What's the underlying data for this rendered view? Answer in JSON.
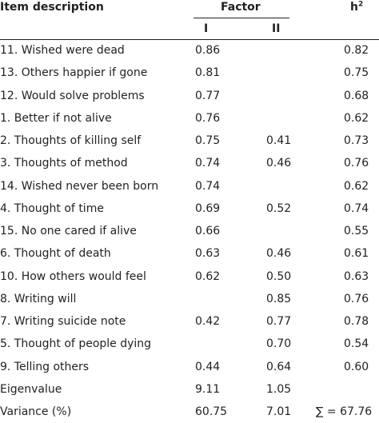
{
  "header": {
    "item_description": "Item description",
    "factor": "Factor",
    "h2_base": "h",
    "h2_sup": "2",
    "col_I": "I",
    "col_II": "II"
  },
  "rows": [
    {
      "desc": "11. Wished were dead",
      "f1": "0.86",
      "f2": "",
      "h2": "0.82"
    },
    {
      "desc": "13. Others happier if gone",
      "f1": "0.81",
      "f2": "",
      "h2": "0.75"
    },
    {
      "desc": "12. Would solve problems",
      "f1": "0.77",
      "f2": "",
      "h2": "0.68"
    },
    {
      "desc": "1. Better if not alive",
      "f1": "0.76",
      "f2": "",
      "h2": "0.62"
    },
    {
      "desc": "2. Thoughts of killing self",
      "f1": "0.75",
      "f2": "0.41",
      "h2": "0.73"
    },
    {
      "desc": "3. Thoughts of method",
      "f1": "0.74",
      "f2": "0.46",
      "h2": "0.76"
    },
    {
      "desc": "14. Wished never been born",
      "f1": "0.74",
      "f2": "",
      "h2": "0.62"
    },
    {
      "desc": "4. Thought of time",
      "f1": "0.69",
      "f2": "0.52",
      "h2": "0.74"
    },
    {
      "desc": "15. No one cared if alive",
      "f1": "0.66",
      "f2": "",
      "h2": "0.55"
    },
    {
      "desc": "6. Thought of death",
      "f1": "0.63",
      "f2": "0.46",
      "h2": "0.61"
    },
    {
      "desc": "10. How others would feel",
      "f1": "0.62",
      "f2": "0.50",
      "h2": "0.63"
    },
    {
      "desc": "8. Writing will",
      "f1": "",
      "f2": "0.85",
      "h2": "0.76"
    },
    {
      "desc": "7. Writing suicide note",
      "f1": "0.42",
      "f2": "0.77",
      "h2": "0.78"
    },
    {
      "desc": "5. Thought of people dying",
      "f1": "",
      "f2": "0.70",
      "h2": "0.54"
    },
    {
      "desc": "9. Telling others",
      "f1": "0.44",
      "f2": "0.64",
      "h2": "0.60"
    },
    {
      "desc": "Eigenvalue",
      "f1": "9.11",
      "f2": "1.05",
      "h2": ""
    },
    {
      "desc": "Variance (%)",
      "f1": "60.75",
      "f2": "7.01",
      "h2": "∑ = 67.76"
    }
  ]
}
